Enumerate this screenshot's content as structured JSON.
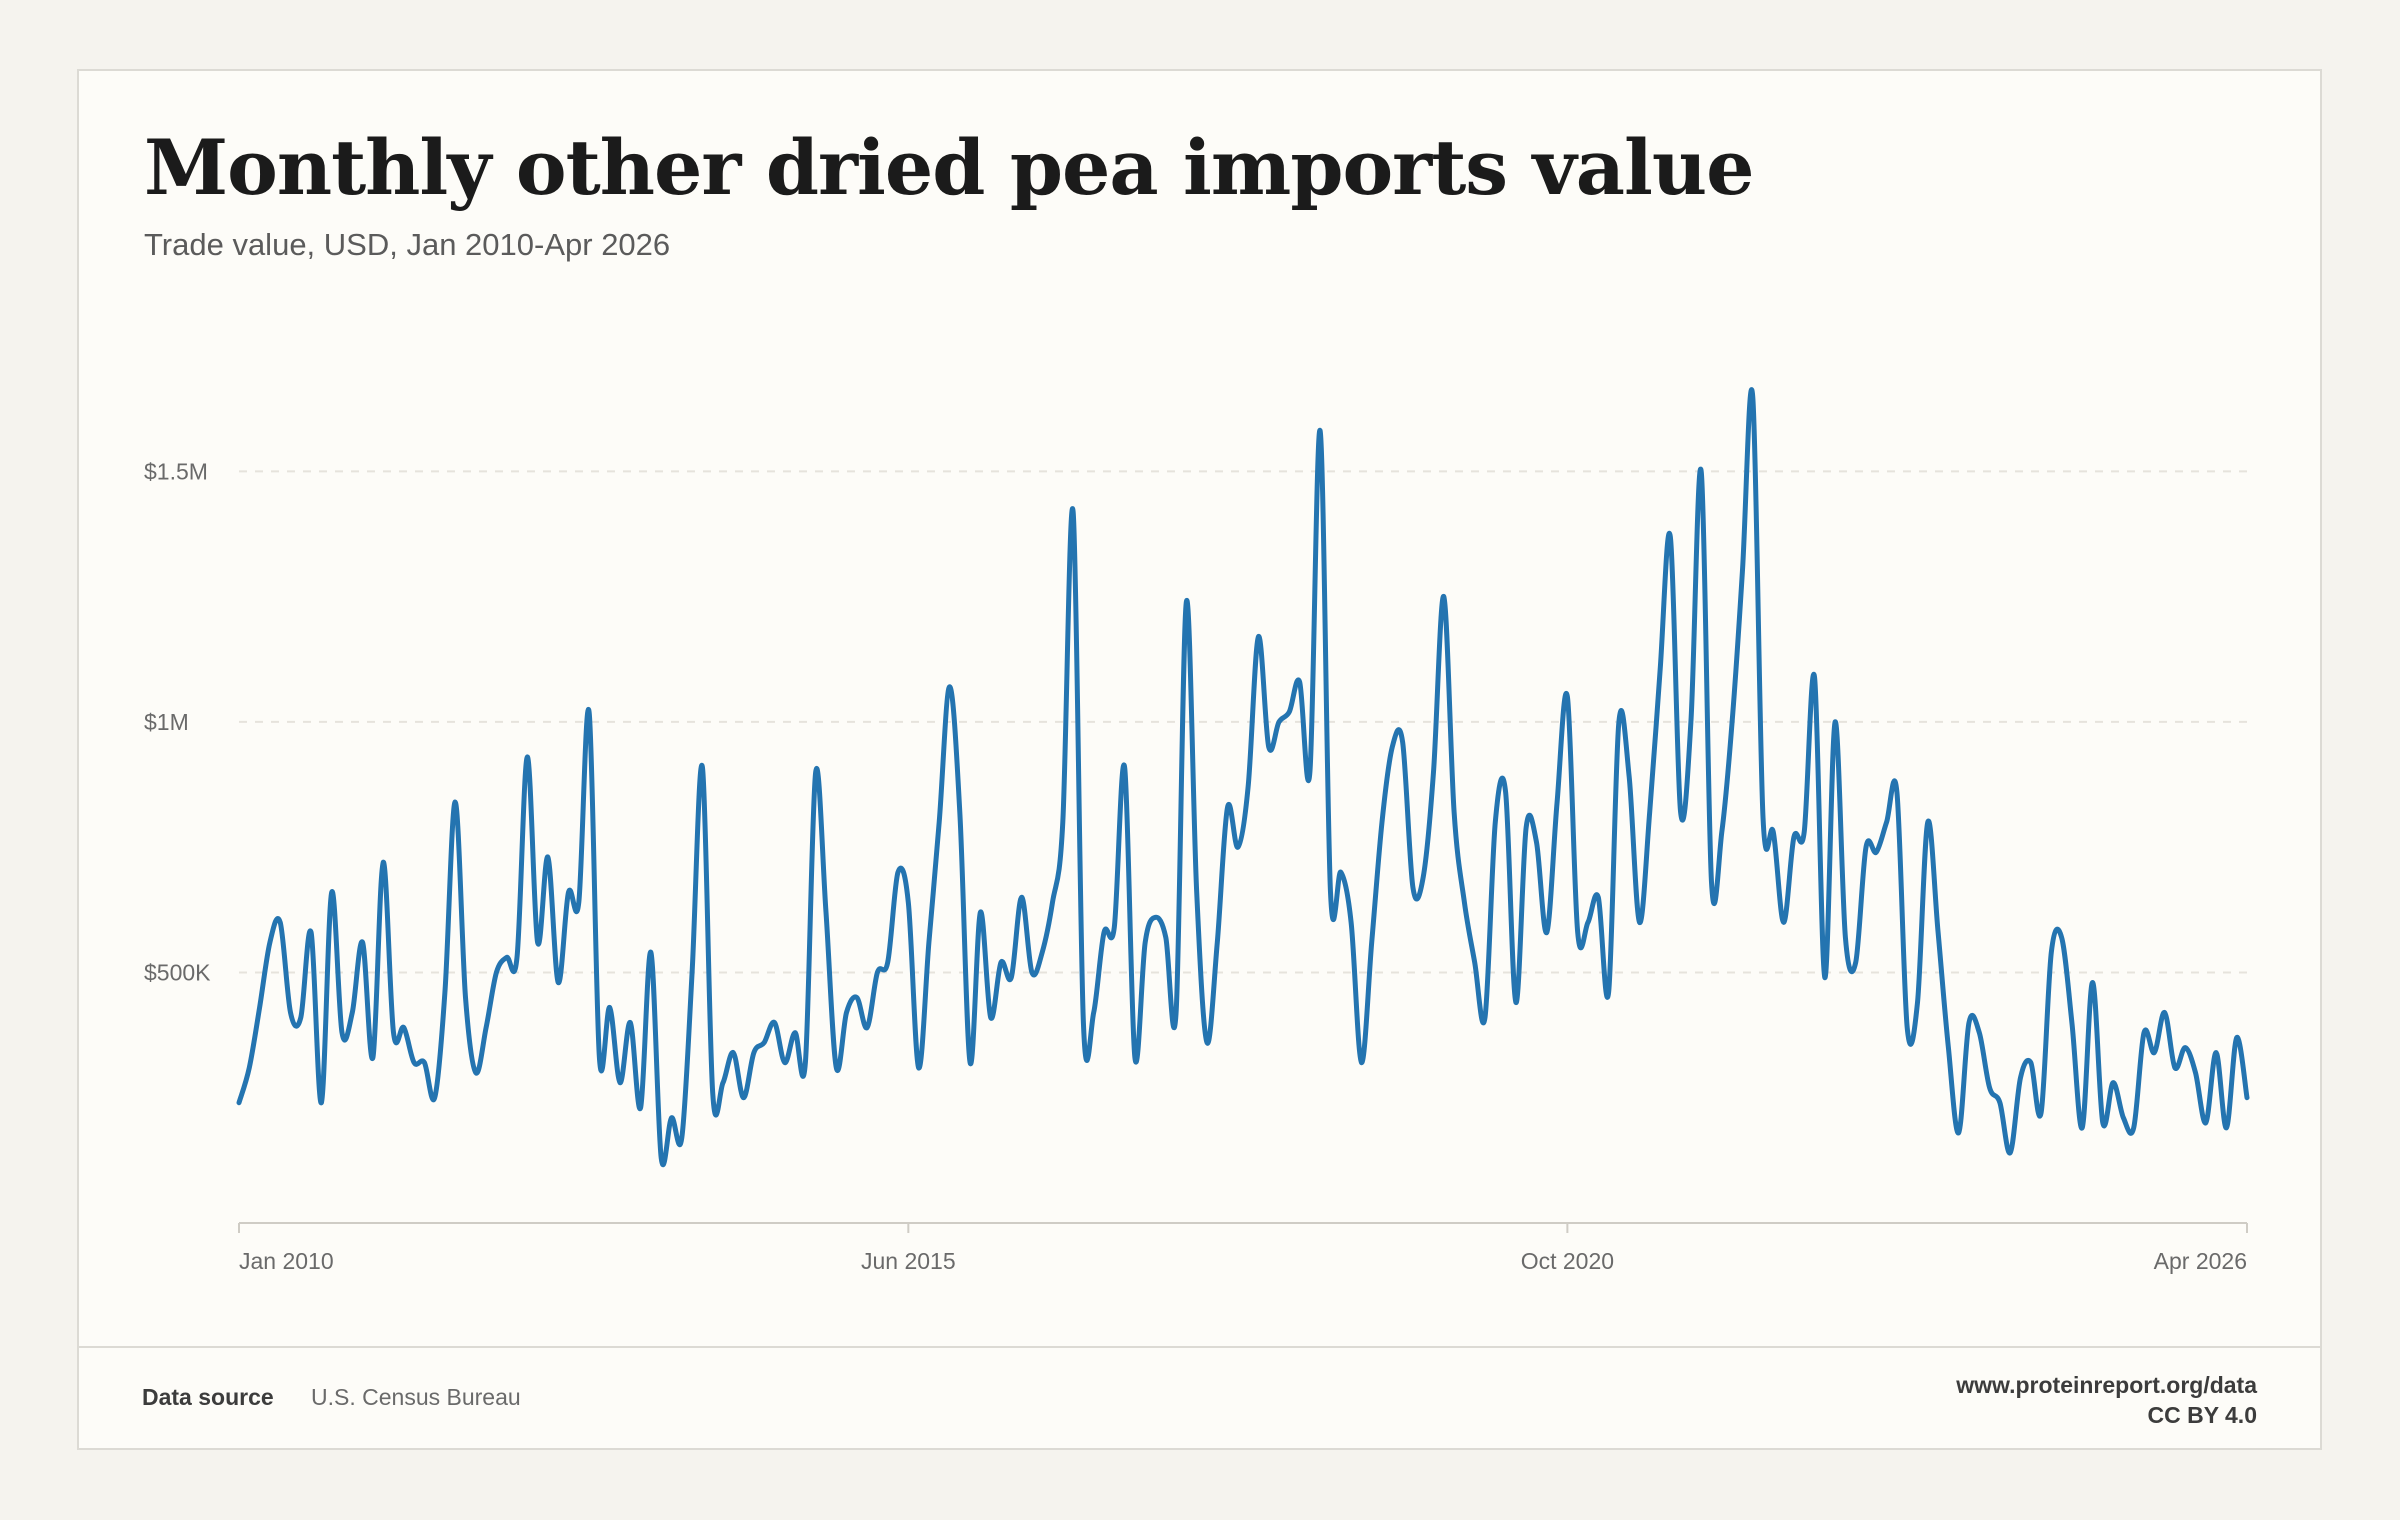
{
  "header": {
    "title": "Monthly other dried pea imports value",
    "subtitle": "Trade value, USD, Jan 2010-Apr 2026"
  },
  "footer": {
    "source_label": "Data source",
    "source_value": "U.S. Census Bureau",
    "site": "www.proteinreport.org/data",
    "license": "CC BY 4.0"
  },
  "colors": {
    "line": "#2474b0",
    "grid": "#e6e3dc",
    "axis": "#cfccc5",
    "tick_text": "#6a6a6a"
  },
  "chart_data": {
    "type": "line",
    "title": "Monthly other dried pea imports value",
    "subtitle": "Trade value, USD, Jan 2010-Apr 2026",
    "xlabel": "",
    "ylabel": "",
    "x_start": "Jan 2010",
    "x_end": "Apr 2026",
    "x_ticks": [
      "Jan 2010",
      "Jun 2015",
      "Oct 2020",
      "Apr 2026"
    ],
    "y_ticks": [
      {
        "value": 500000,
        "label": "$500K"
      },
      {
        "value": 1000000,
        "label": "$1M"
      },
      {
        "value": 1500000,
        "label": "$1.5M"
      }
    ],
    "ylim": [
      0,
      1800000
    ],
    "grid": true,
    "legend": "none",
    "series": [
      {
        "values": [
          240000,
          310000,
          430000,
          560000,
          600000,
          420000,
          410000,
          580000,
          240000,
          660000,
          380000,
          420000,
          560000,
          330000,
          720000,
          380000,
          390000,
          320000,
          320000,
          250000,
          460000,
          840000,
          450000,
          300000,
          390000,
          500000,
          530000,
          530000,
          930000,
          560000,
          730000,
          480000,
          660000,
          640000,
          1020000,
          330000,
          430000,
          280000,
          400000,
          230000,
          540000,
          130000,
          210000,
          170000,
          500000,
          910000,
          260000,
          280000,
          340000,
          250000,
          340000,
          360000,
          400000,
          320000,
          380000,
          320000,
          900000,
          620000,
          310000,
          420000,
          450000,
          390000,
          500000,
          520000,
          700000,
          640000,
          310000,
          560000,
          800000,
          1070000,
          820000,
          320000,
          620000,
          410000,
          520000,
          490000,
          650000,
          500000,
          540000,
          640000,
          800000,
          1420000,
          400000,
          420000,
          580000,
          590000,
          910000,
          330000,
          560000,
          610000,
          570000,
          420000,
          1240000,
          660000,
          360000,
          560000,
          830000,
          750000,
          870000,
          1170000,
          950000,
          1000000,
          1020000,
          1080000,
          900000,
          1580000,
          660000,
          700000,
          600000,
          320000,
          560000,
          800000,
          950000,
          960000,
          670000,
          690000,
          900000,
          1250000,
          820000,
          640000,
          520000,
          410000,
          800000,
          860000,
          440000,
          790000,
          760000,
          580000,
          840000,
          1050000,
          580000,
          600000,
          650000,
          460000,
          1000000,
          890000,
          600000,
          820000,
          1100000,
          1370000,
          820000,
          1000000,
          1500000,
          680000,
          780000,
          1000000,
          1300000,
          1650000,
          810000,
          780000,
          600000,
          770000,
          780000,
          1090000,
          490000,
          1000000,
          570000,
          520000,
          750000,
          740000,
          800000,
          860000,
          390000,
          440000,
          800000,
          580000,
          350000,
          180000,
          400000,
          380000,
          270000,
          240000,
          140000,
          290000,
          320000,
          220000,
          540000,
          570000,
          400000,
          190000,
          480000,
          200000,
          280000,
          210000,
          190000,
          380000,
          340000,
          420000,
          310000,
          350000,
          300000,
          200000,
          340000,
          190000,
          370000,
          250000
        ],
        "color": "#2474b0"
      }
    ]
  }
}
